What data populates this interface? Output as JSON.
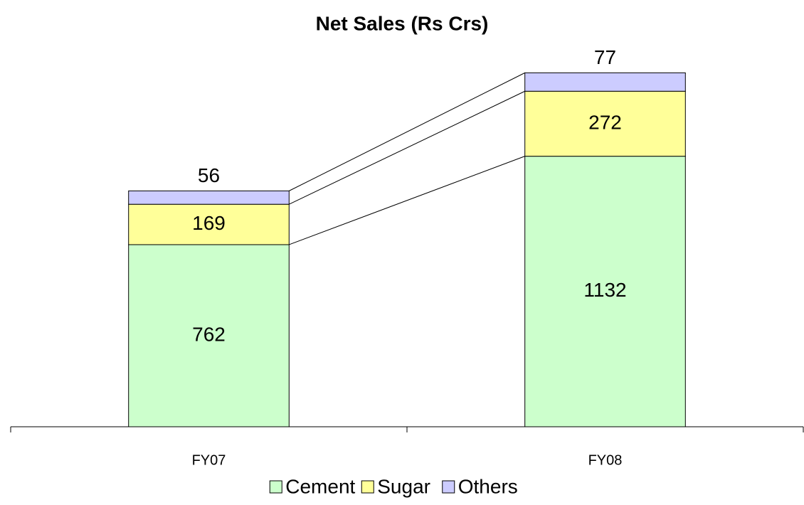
{
  "chart_data": {
    "type": "stacked_bar",
    "title": "Net Sales (Rs Crs)",
    "categories": [
      "FY07",
      "FY08"
    ],
    "series": [
      {
        "name": "Cement",
        "color": "#ccffcc",
        "values": [
          762,
          1132
        ]
      },
      {
        "name": "Sugar",
        "color": "#ffff99",
        "values": [
          169,
          272
        ]
      },
      {
        "name": "Others",
        "color": "#ccccff",
        "values": [
          56,
          77
        ]
      }
    ],
    "ylim": [
      0,
      1500
    ],
    "grid": false,
    "legend": "bottom",
    "series_lines": true
  }
}
